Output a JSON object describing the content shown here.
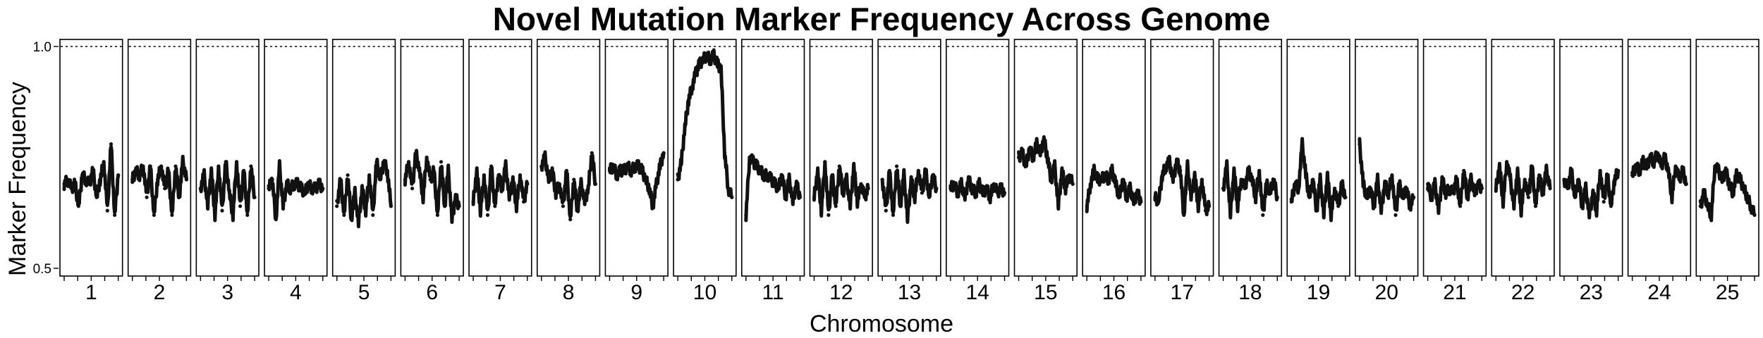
{
  "chart_data": {
    "type": "scatter",
    "title": "Novel Mutation Marker Frequency Across Genome",
    "xlabel": "Chromosome",
    "ylabel": "Marker Frequency",
    "ylim": [
      0.5,
      1.0
    ],
    "y_ticks": [
      "0.5",
      "1.0"
    ],
    "reference_line": 1.0,
    "categories": [
      "1",
      "2",
      "3",
      "4",
      "5",
      "6",
      "7",
      "8",
      "9",
      "10",
      "11",
      "12",
      "13",
      "14",
      "15",
      "16",
      "17",
      "18",
      "19",
      "20",
      "21",
      "22",
      "23",
      "24",
      "25"
    ],
    "series": [
      {
        "chromosome": "1",
        "values": [
          0.69,
          0.7,
          0.68,
          0.69,
          0.64,
          0.71,
          0.7,
          0.69,
          0.72,
          0.66,
          0.7,
          0.74,
          0.63,
          0.78,
          0.62,
          0.71
        ]
      },
      {
        "chromosome": "2",
        "values": [
          0.7,
          0.72,
          0.71,
          0.73,
          0.66,
          0.73,
          0.62,
          0.7,
          0.73,
          0.68,
          0.72,
          0.62,
          0.73,
          0.66,
          0.74,
          0.7
        ]
      },
      {
        "chromosome": "3",
        "values": [
          0.68,
          0.71,
          0.64,
          0.72,
          0.62,
          0.73,
          0.63,
          0.74,
          0.67,
          0.62,
          0.74,
          0.64,
          0.72,
          0.62,
          0.73,
          0.66
        ]
      },
      {
        "chromosome": "4",
        "values": [
          0.68,
          0.7,
          0.61,
          0.73,
          0.64,
          0.69,
          0.68,
          0.69,
          0.69,
          0.68,
          0.67,
          0.69,
          0.68,
          0.68,
          0.69,
          0.68
        ]
      },
      {
        "chromosome": "5",
        "values": [
          0.64,
          0.7,
          0.62,
          0.71,
          0.61,
          0.67,
          0.6,
          0.68,
          0.63,
          0.71,
          0.62,
          0.74,
          0.7,
          0.74,
          0.72,
          0.64
        ]
      },
      {
        "chromosome": "6",
        "values": [
          0.7,
          0.74,
          0.68,
          0.76,
          0.72,
          0.66,
          0.75,
          0.7,
          0.72,
          0.62,
          0.74,
          0.64,
          0.72,
          0.61,
          0.66,
          0.64
        ]
      },
      {
        "chromosome": "7",
        "values": [
          0.65,
          0.72,
          0.63,
          0.71,
          0.62,
          0.73,
          0.64,
          0.71,
          0.68,
          0.73,
          0.66,
          0.7,
          0.64,
          0.71,
          0.65,
          0.69
        ]
      },
      {
        "chromosome": "8",
        "values": [
          0.73,
          0.75,
          0.7,
          0.72,
          0.67,
          0.69,
          0.64,
          0.72,
          0.61,
          0.7,
          0.63,
          0.69,
          0.65,
          0.68,
          0.76,
          0.69
        ]
      },
      {
        "chromosome": "9",
        "values": [
          0.72,
          0.73,
          0.71,
          0.72,
          0.72,
          0.73,
          0.72,
          0.73,
          0.73,
          0.72,
          0.7,
          0.68,
          0.64,
          0.69,
          0.73,
          0.76
        ]
      },
      {
        "chromosome": "10",
        "values": [
          0.7,
          0.74,
          0.82,
          0.88,
          0.91,
          0.94,
          0.96,
          0.97,
          0.98,
          0.97,
          0.98,
          0.96,
          0.95,
          0.76,
          0.68,
          0.66
        ]
      },
      {
        "chromosome": "11",
        "values": [
          0.62,
          0.75,
          0.74,
          0.73,
          0.72,
          0.71,
          0.71,
          0.7,
          0.69,
          0.68,
          0.71,
          0.66,
          0.7,
          0.65,
          0.69,
          0.66
        ]
      },
      {
        "chromosome": "12",
        "values": [
          0.66,
          0.72,
          0.63,
          0.74,
          0.62,
          0.71,
          0.64,
          0.73,
          0.67,
          0.7,
          0.64,
          0.73,
          0.65,
          0.69,
          0.66,
          0.68
        ]
      },
      {
        "chromosome": "13",
        "values": [
          0.7,
          0.63,
          0.72,
          0.62,
          0.73,
          0.64,
          0.71,
          0.61,
          0.7,
          0.66,
          0.72,
          0.67,
          0.72,
          0.66,
          0.71,
          0.68
        ]
      },
      {
        "chromosome": "14",
        "values": [
          0.68,
          0.69,
          0.67,
          0.69,
          0.66,
          0.7,
          0.68,
          0.67,
          0.69,
          0.67,
          0.68,
          0.66,
          0.69,
          0.67,
          0.68,
          0.67
        ]
      },
      {
        "chromosome": "15",
        "values": [
          0.75,
          0.76,
          0.73,
          0.77,
          0.75,
          0.78,
          0.76,
          0.79,
          0.75,
          0.7,
          0.73,
          0.64,
          0.72,
          0.68,
          0.71,
          0.69
        ]
      },
      {
        "chromosome": "16",
        "values": [
          0.64,
          0.69,
          0.72,
          0.7,
          0.7,
          0.71,
          0.7,
          0.72,
          0.69,
          0.66,
          0.7,
          0.66,
          0.68,
          0.65,
          0.67,
          0.65
        ]
      },
      {
        "chromosome": "17",
        "values": [
          0.66,
          0.65,
          0.71,
          0.73,
          0.74,
          0.7,
          0.74,
          0.72,
          0.62,
          0.73,
          0.66,
          0.71,
          0.64,
          0.7,
          0.63,
          0.64
        ]
      },
      {
        "chromosome": "18",
        "values": [
          0.68,
          0.73,
          0.62,
          0.72,
          0.64,
          0.7,
          0.68,
          0.72,
          0.7,
          0.66,
          0.72,
          0.62,
          0.69,
          0.67,
          0.7,
          0.66
        ]
      },
      {
        "chromosome": "19",
        "values": [
          0.65,
          0.69,
          0.68,
          0.78,
          0.71,
          0.66,
          0.7,
          0.63,
          0.7,
          0.62,
          0.71,
          0.62,
          0.68,
          0.64,
          0.69,
          0.66
        ]
      },
      {
        "chromosome": "20",
        "values": [
          0.78,
          0.69,
          0.66,
          0.68,
          0.64,
          0.7,
          0.63,
          0.69,
          0.67,
          0.71,
          0.62,
          0.69,
          0.66,
          0.68,
          0.64,
          0.66
        ]
      },
      {
        "chromosome": "21",
        "values": [
          0.69,
          0.66,
          0.69,
          0.63,
          0.7,
          0.67,
          0.68,
          0.67,
          0.7,
          0.64,
          0.72,
          0.66,
          0.7,
          0.67,
          0.69,
          0.68
        ]
      },
      {
        "chromosome": "22",
        "values": [
          0.68,
          0.73,
          0.65,
          0.74,
          0.7,
          0.64,
          0.72,
          0.63,
          0.7,
          0.66,
          0.73,
          0.64,
          0.71,
          0.67,
          0.72,
          0.68
        ]
      },
      {
        "chromosome": "23",
        "values": [
          0.7,
          0.68,
          0.72,
          0.66,
          0.7,
          0.64,
          0.68,
          0.62,
          0.67,
          0.63,
          0.72,
          0.65,
          0.71,
          0.64,
          0.7,
          0.72
        ]
      },
      {
        "chromosome": "24",
        "values": [
          0.71,
          0.73,
          0.72,
          0.74,
          0.73,
          0.75,
          0.74,
          0.76,
          0.73,
          0.75,
          0.72,
          0.66,
          0.73,
          0.7,
          0.72,
          0.69
        ]
      },
      {
        "chromosome": "25",
        "values": [
          0.64,
          0.67,
          0.64,
          0.62,
          0.73,
          0.72,
          0.7,
          0.72,
          0.69,
          0.67,
          0.71,
          0.7,
          0.68,
          0.66,
          0.64,
          0.62
        ]
      }
    ],
    "grid": false,
    "legend": "none",
    "colors": {
      "trace": "#111111",
      "panel_border": "#000000",
      "background": "#ffffff"
    }
  }
}
